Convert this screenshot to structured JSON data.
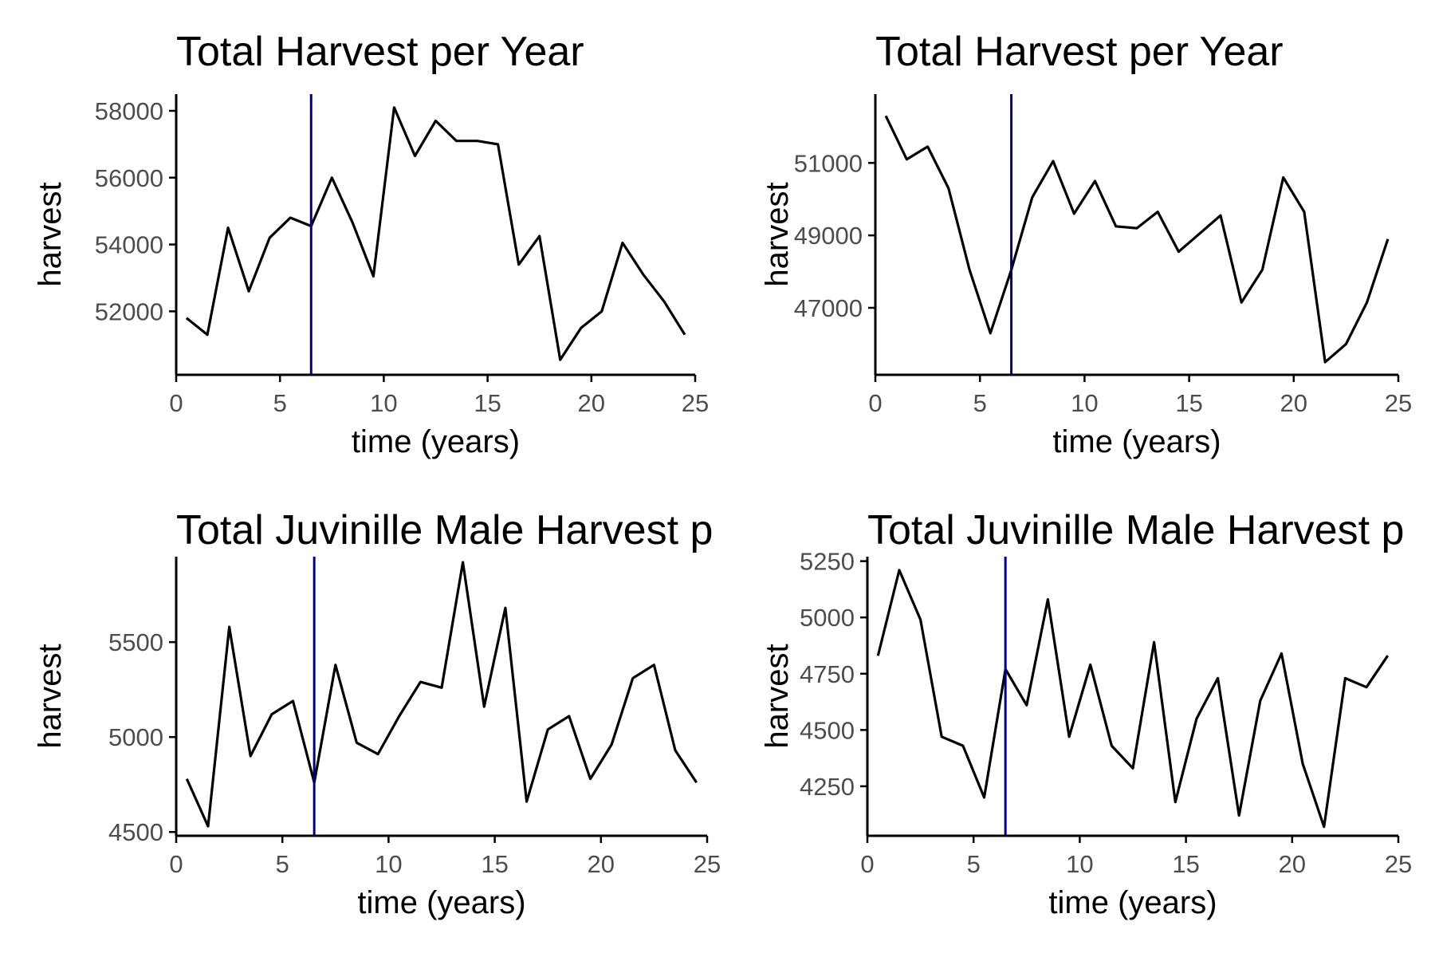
{
  "colors": {
    "line": "#000000",
    "marker_line": "#00007f",
    "axis": "#000000",
    "tick_text": "#4d4d4d"
  },
  "chart_data": [
    {
      "type": "line",
      "title": "Total Harvest per Year",
      "xlabel": "time (years)",
      "ylabel": "harvest",
      "xlim": [
        0,
        25
      ],
      "ylim": [
        50100,
        58500
      ],
      "xticks": [
        0,
        5,
        10,
        15,
        20,
        25
      ],
      "yticks": [
        52000,
        54000,
        56000,
        58000
      ],
      "vline_x": 6.5,
      "grid": false,
      "legend": "none",
      "x": [
        0.5,
        1.5,
        2.5,
        3.5,
        4.5,
        5.5,
        6.5,
        7.5,
        8.5,
        9.5,
        10.5,
        11.5,
        12.5,
        13.5,
        14.5,
        15.5,
        16.5,
        17.5,
        18.5,
        19.5,
        20.5,
        21.5,
        22.5,
        23.5,
        24.5
      ],
      "values": [
        51800,
        51300,
        54500,
        52600,
        54200,
        54800,
        54550,
        56000,
        54650,
        53050,
        58100,
        56650,
        57700,
        57100,
        57100,
        57000,
        53400,
        54250,
        50550,
        51500,
        52000,
        54050,
        53100,
        52300,
        51300
      ]
    },
    {
      "type": "line",
      "title": "Total Harvest per Year",
      "xlabel": "time (years)",
      "ylabel": "harvest",
      "xlim": [
        0,
        25
      ],
      "ylim": [
        45150,
        52900
      ],
      "xticks": [
        0,
        5,
        10,
        15,
        20,
        25
      ],
      "yticks": [
        47000,
        49000,
        51000
      ],
      "vline_x": 6.5,
      "grid": false,
      "legend": "none",
      "x": [
        0.5,
        1.5,
        2.5,
        3.5,
        4.5,
        5.5,
        6.5,
        7.5,
        8.5,
        9.5,
        10.5,
        11.5,
        12.5,
        13.5,
        14.5,
        15.5,
        16.5,
        17.5,
        18.5,
        19.5,
        20.5,
        21.5,
        22.5,
        23.5,
        24.5
      ],
      "values": [
        52300,
        51100,
        51450,
        50300,
        48050,
        46300,
        48050,
        50050,
        51050,
        49600,
        50500,
        49250,
        49200,
        49650,
        48550,
        49050,
        49550,
        47150,
        48050,
        50600,
        49650,
        45500,
        46000,
        47150,
        48900
      ]
    },
    {
      "type": "line",
      "title": "Total Juvinille Male Harvest p",
      "xlabel": "time (years)",
      "ylabel": "harvest",
      "xlim": [
        0,
        25
      ],
      "ylim": [
        4480,
        5950
      ],
      "xticks": [
        0,
        5,
        10,
        15,
        20,
        25
      ],
      "yticks": [
        4500,
        5000,
        5500
      ],
      "vline_x": 6.5,
      "grid": false,
      "legend": "none",
      "x": [
        0.5,
        1.5,
        2.5,
        3.5,
        4.5,
        5.5,
        6.5,
        7.5,
        8.5,
        9.5,
        10.5,
        11.5,
        12.5,
        13.5,
        14.5,
        15.5,
        16.5,
        17.5,
        18.5,
        19.5,
        20.5,
        21.5,
        22.5,
        23.5,
        24.5
      ],
      "values": [
        4780,
        4530,
        5580,
        4900,
        5120,
        5190,
        4760,
        5380,
        4970,
        4910,
        5110,
        5290,
        5260,
        5920,
        5160,
        5680,
        4660,
        5040,
        5110,
        4780,
        4960,
        5310,
        5380,
        4930,
        4760
      ]
    },
    {
      "type": "line",
      "title": "Total Juvinille Male Harvest p",
      "xlabel": "time (years)",
      "ylabel": "harvest",
      "xlim": [
        0,
        25
      ],
      "ylim": [
        4030,
        5270
      ],
      "xticks": [
        0,
        5,
        10,
        15,
        20,
        25
      ],
      "yticks": [
        4250,
        4500,
        4750,
        5000,
        5250
      ],
      "vline_x": 6.5,
      "grid": false,
      "legend": "none",
      "x": [
        0.5,
        1.5,
        2.5,
        3.5,
        4.5,
        5.5,
        6.5,
        7.5,
        8.5,
        9.5,
        10.5,
        11.5,
        12.5,
        13.5,
        14.5,
        15.5,
        16.5,
        17.5,
        18.5,
        19.5,
        20.5,
        21.5,
        22.5,
        23.5,
        24.5
      ],
      "values": [
        4830,
        5210,
        4990,
        4470,
        4430,
        4200,
        4770,
        4610,
        5080,
        4470,
        4790,
        4430,
        4330,
        4890,
        4180,
        4550,
        4730,
        4120,
        4630,
        4840,
        4350,
        4070,
        4730,
        4690,
        4830
      ]
    }
  ]
}
